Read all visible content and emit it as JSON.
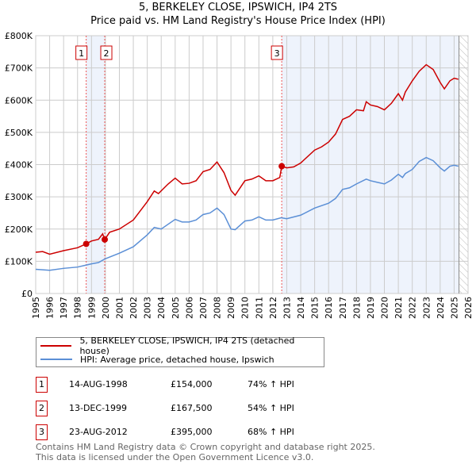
{
  "chart_data": {
    "type": "line",
    "title": "5, BERKELEY CLOSE, IPSWICH, IP4 2TS",
    "subtitle": "Price paid vs. HM Land Registry's House Price Index (HPI)",
    "xlim": [
      1995,
      2026
    ],
    "ylim": [
      0,
      800000
    ],
    "x_ticks": [
      "1995",
      "1996",
      "1997",
      "1998",
      "1999",
      "2000",
      "2001",
      "2002",
      "2003",
      "2004",
      "2005",
      "2006",
      "2007",
      "2008",
      "2009",
      "2010",
      "2011",
      "2012",
      "2013",
      "2014",
      "2015",
      "2016",
      "2017",
      "2018",
      "2019",
      "2020",
      "2021",
      "2022",
      "2023",
      "2024",
      "2025",
      "2026"
    ],
    "y_ticks": [
      "£0",
      "£100K",
      "£200K",
      "£300K",
      "£400K",
      "£500K",
      "£600K",
      "£700K",
      "£800K"
    ],
    "grid": true,
    "colors": {
      "property": "#cc0000",
      "hpi": "#5b8fd6",
      "shade": "#eef3fc"
    },
    "series": [
      {
        "name": "5, BERKELEY CLOSE, IPSWICH, IP4 2TS (detached house)",
        "x": [
          1995,
          1995.5,
          1996,
          1997,
          1998,
          1998.62,
          1999,
          1999.5,
          1999.8,
          1999.95,
          2000.3,
          2001,
          2002,
          2003,
          2003.5,
          2003.8,
          2004.5,
          2005,
          2005.5,
          2006,
          2006.5,
          2007,
          2007.5,
          2008,
          2008.5,
          2009,
          2009.3,
          2010,
          2010.5,
          2011,
          2011.5,
          2012,
          2012.5,
          2012.64,
          2013,
          2013.5,
          2014,
          2015,
          2015.5,
          2016,
          2016.5,
          2017,
          2017.5,
          2018,
          2018.5,
          2018.7,
          2019,
          2019.5,
          2020,
          2020.5,
          2021,
          2021.3,
          2021.5,
          2022,
          2022.5,
          2023,
          2023.5,
          2024,
          2024.3,
          2024.7,
          2025,
          2025.3
        ],
        "y": [
          128,
          130,
          122,
          133,
          142,
          154,
          163,
          168,
          185,
          167.5,
          190,
          200,
          228,
          285,
          318,
          310,
          340,
          358,
          340,
          342,
          350,
          378,
          385,
          408,
          375,
          320,
          305,
          350,
          355,
          365,
          350,
          350,
          360,
          395,
          390,
          393,
          405,
          445,
          455,
          470,
          495,
          540,
          550,
          570,
          567,
          595,
          585,
          580,
          570,
          590,
          620,
          600,
          625,
          660,
          690,
          710,
          695,
          655,
          635,
          660,
          668,
          665
        ]
      },
      {
        "name": "HPI: Average price, detached house, Ipswich",
        "x": [
          1995,
          1996,
          1997,
          1998,
          1998.6,
          1999,
          1999.5,
          2000,
          2001,
          2002,
          2003,
          2003.5,
          2004,
          2005,
          2005.5,
          2006,
          2006.5,
          2007,
          2007.5,
          2008,
          2008.5,
          2009,
          2009.3,
          2010,
          2010.5,
          2011,
          2011.5,
          2012,
          2012.6,
          2013,
          2014,
          2015,
          2016,
          2016.5,
          2017,
          2017.5,
          2018,
          2018.7,
          2019,
          2019.5,
          2020,
          2020.5,
          2021,
          2021.3,
          2021.5,
          2022,
          2022.5,
          2023,
          2023.5,
          2024,
          2024.3,
          2024.7,
          2025,
          2025.3
        ],
        "y": [
          75,
          72,
          78,
          82,
          88,
          92,
          96,
          108,
          125,
          145,
          182,
          205,
          200,
          230,
          222,
          222,
          228,
          245,
          250,
          265,
          245,
          200,
          198,
          225,
          228,
          238,
          228,
          228,
          235,
          232,
          243,
          265,
          280,
          295,
          323,
          328,
          340,
          355,
          350,
          345,
          340,
          352,
          370,
          360,
          372,
          385,
          410,
          422,
          412,
          390,
          380,
          395,
          398,
          395
        ]
      }
    ],
    "y_units": "thousands GBP",
    "sales": [
      {
        "label": "1",
        "x": 1998.62,
        "date": "14-AUG-1998",
        "price": "£154,000",
        "value": 154,
        "hpi": "74% ↑ HPI"
      },
      {
        "label": "2",
        "x": 1999.95,
        "date": "13-DEC-1999",
        "price": "£167,500",
        "value": 167.5,
        "hpi": "54% ↑ HPI"
      },
      {
        "label": "3",
        "x": 2012.64,
        "date": "23-AUG-2012",
        "price": "£395,000",
        "value": 395,
        "hpi": "68% ↑ HPI"
      }
    ],
    "forecast_start": 2025.35
  },
  "footer": {
    "line1": "Contains HM Land Registry data © Crown copyright and database right 2025.",
    "line2": "This data is licensed under the Open Government Licence v3.0."
  }
}
